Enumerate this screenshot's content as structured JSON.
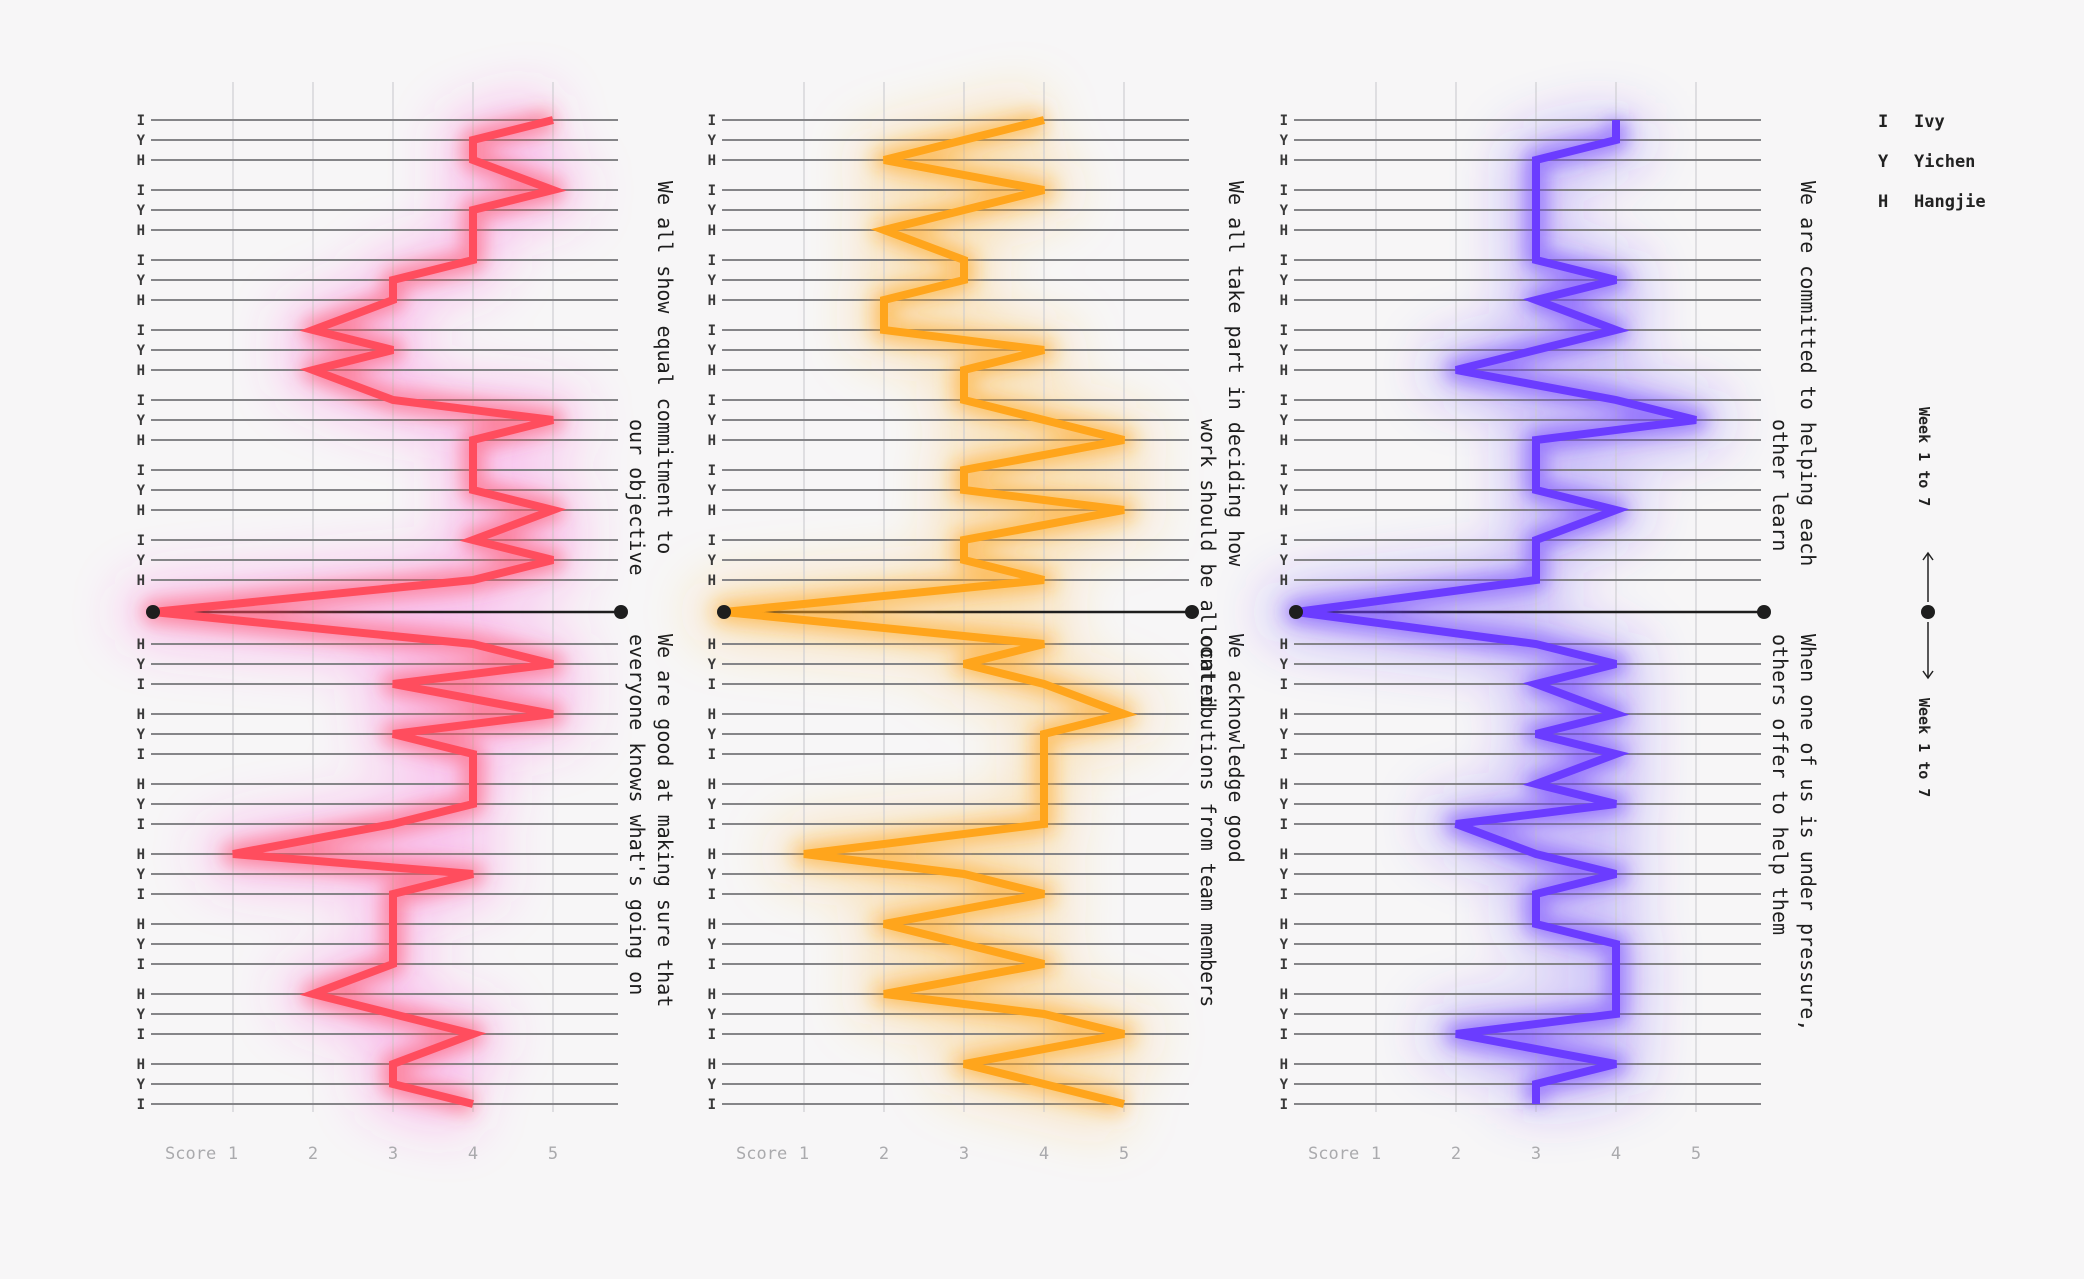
{
  "legend": {
    "items": [
      {
        "abbr": "I",
        "name": "Ivy"
      },
      {
        "abbr": "Y",
        "name": "Yichen"
      },
      {
        "abbr": "H",
        "name": "Hangjie"
      }
    ],
    "week_label": "Week 1 to 7"
  },
  "chart_data": [
    {
      "type": "line",
      "color": "#ff4d5e",
      "glow_color": "#ff3fd8",
      "x_label": "Score",
      "x_ticks": [
        1,
        2,
        3,
        4,
        5
      ],
      "xlim": [
        0,
        5.8
      ],
      "top": {
        "statement_lines": [
          "We all show equal commitment to",
          "our objective"
        ],
        "weeks": [
          {
            "week": 1,
            "I": 5,
            "Y": 4,
            "H": 4
          },
          {
            "week": 2,
            "I": 5,
            "Y": 4,
            "H": 4
          },
          {
            "week": 3,
            "I": 4,
            "Y": 3,
            "H": 3
          },
          {
            "week": 4,
            "I": 2,
            "Y": 3,
            "H": 2
          },
          {
            "week": 5,
            "I": 3,
            "Y": 5,
            "H": 4
          },
          {
            "week": 6,
            "I": 4,
            "Y": 4,
            "H": 5
          },
          {
            "week": 7,
            "I": 4,
            "Y": 5,
            "H": 4
          }
        ]
      },
      "bottom": {
        "statement_lines": [
          "We are good at making sure that",
          "everyone knows what's going on"
        ],
        "weeks": [
          {
            "week": 1,
            "H": 4,
            "Y": 5,
            "I": 3
          },
          {
            "week": 2,
            "H": 5,
            "Y": 3,
            "I": 4
          },
          {
            "week": 3,
            "H": 4,
            "Y": 4,
            "I": 3
          },
          {
            "week": 4,
            "H": 1,
            "Y": 4,
            "I": 3
          },
          {
            "week": 5,
            "H": 3,
            "Y": 3,
            "I": 3
          },
          {
            "week": 6,
            "H": 2,
            "Y": 3,
            "I": 4
          },
          {
            "week": 7,
            "H": 3,
            "Y": 3,
            "I": 4
          }
        ]
      }
    },
    {
      "type": "line",
      "color": "#ffa51c",
      "glow_color": "#ffb52e",
      "x_label": "Score",
      "x_ticks": [
        1,
        2,
        3,
        4,
        5
      ],
      "xlim": [
        0,
        5.8
      ],
      "top": {
        "statement_lines": [
          "We all take part in deciding how",
          "work should be allocated"
        ],
        "weeks": [
          {
            "week": 1,
            "I": 4,
            "Y": 3,
            "H": 2
          },
          {
            "week": 2,
            "I": 4,
            "Y": 3,
            "H": 2
          },
          {
            "week": 3,
            "I": 3,
            "Y": 3,
            "H": 2
          },
          {
            "week": 4,
            "I": 2,
            "Y": 4,
            "H": 3
          },
          {
            "week": 5,
            "I": 3,
            "Y": 4,
            "H": 5
          },
          {
            "week": 6,
            "I": 3,
            "Y": 3,
            "H": 5
          },
          {
            "week": 7,
            "I": 3,
            "Y": 3,
            "H": 4
          }
        ]
      },
      "bottom": {
        "statement_lines": [
          "We acknowledge good",
          "contributions from team members"
        ],
        "weeks": [
          {
            "week": 1,
            "H": 4,
            "Y": 3,
            "I": 4
          },
          {
            "week": 2,
            "H": 5,
            "Y": 4,
            "I": 4
          },
          {
            "week": 3,
            "H": 4,
            "Y": 4,
            "I": 4
          },
          {
            "week": 4,
            "H": 1,
            "Y": 3,
            "I": 4
          },
          {
            "week": 5,
            "H": 2,
            "Y": 3,
            "I": 4
          },
          {
            "week": 6,
            "H": 2,
            "Y": 4,
            "I": 5
          },
          {
            "week": 7,
            "H": 3,
            "Y": 4,
            "I": 5
          }
        ]
      }
    },
    {
      "type": "line",
      "color": "#6b3cff",
      "glow_color": "#5a2bff",
      "x_label": "Score",
      "x_ticks": [
        1,
        2,
        3,
        4,
        5
      ],
      "xlim": [
        0,
        5.8
      ],
      "top": {
        "statement_lines": [
          "We are committed to helping each",
          "other learn"
        ],
        "weeks": [
          {
            "week": 1,
            "I": 4,
            "Y": 4,
            "H": 3
          },
          {
            "week": 2,
            "I": 3,
            "Y": 3,
            "H": 3
          },
          {
            "week": 3,
            "I": 3,
            "Y": 4,
            "H": 3
          },
          {
            "week": 4,
            "I": 4,
            "Y": 3,
            "H": 2
          },
          {
            "week": 5,
            "I": 4,
            "Y": 5,
            "H": 3
          },
          {
            "week": 6,
            "I": 3,
            "Y": 3,
            "H": 4
          },
          {
            "week": 7,
            "I": 3,
            "Y": 3,
            "H": 3
          }
        ]
      },
      "bottom": {
        "statement_lines": [
          "When one of us is under pressure,",
          "others offer to help them"
        ],
        "weeks": [
          {
            "week": 1,
            "H": 3,
            "Y": 4,
            "I": 3
          },
          {
            "week": 2,
            "H": 4,
            "Y": 3,
            "I": 4
          },
          {
            "week": 3,
            "H": 3,
            "Y": 4,
            "I": 2
          },
          {
            "week": 4,
            "H": 3,
            "Y": 4,
            "I": 3
          },
          {
            "week": 5,
            "H": 3,
            "Y": 4,
            "I": 4
          },
          {
            "week": 6,
            "H": 4,
            "Y": 4,
            "I": 2
          },
          {
            "week": 7,
            "H": 4,
            "Y": 3,
            "I": 3
          }
        ]
      }
    }
  ]
}
